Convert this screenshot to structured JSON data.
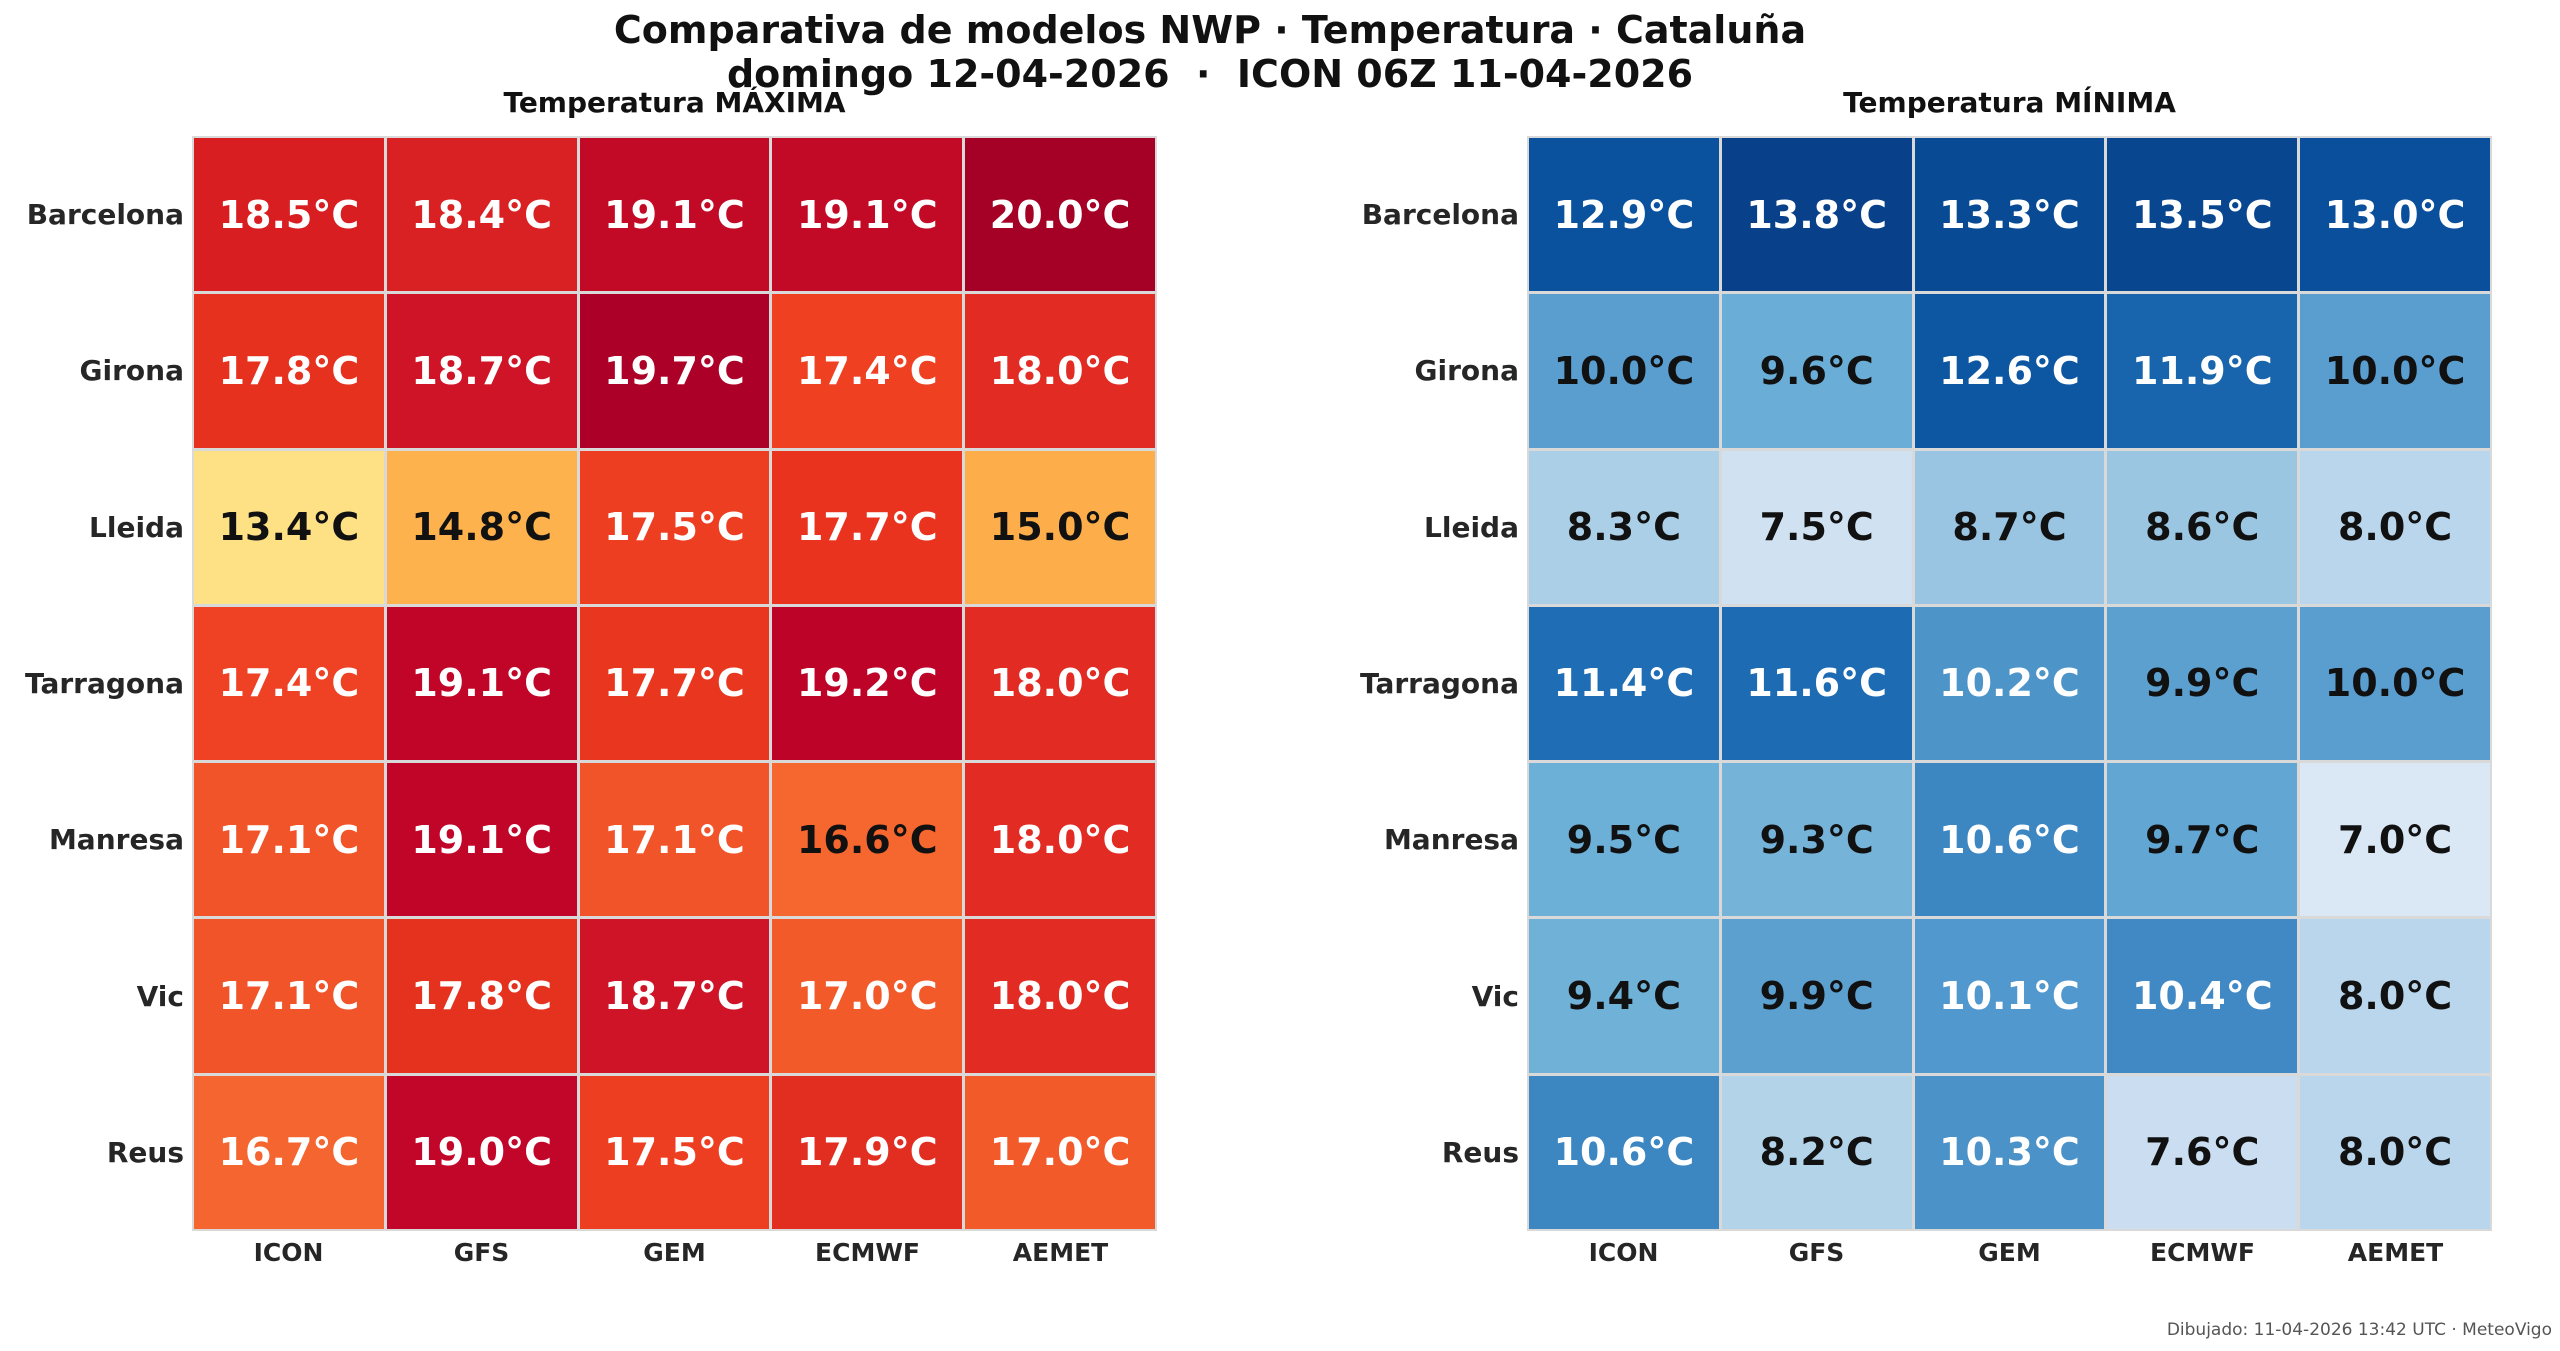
{
  "header": {
    "title_line1": "Comparativa de modelos NWP · Temperatura · Cataluña",
    "title_line2": "domingo 12-04-2026  ·  ICON 06Z 11-04-2026"
  },
  "footer": {
    "text": "Dibujado: 11-04-2026 13:42 UTC · MeteoVigo"
  },
  "rows": [
    "Barcelona",
    "Girona",
    "Lleida",
    "Tarragona",
    "Manresa",
    "Vic",
    "Reus"
  ],
  "columns": [
    "ICON",
    "GFS",
    "GEM",
    "ECMWF",
    "AEMET"
  ],
  "max_panel": {
    "title": "Temperatura MÁXIMA",
    "cells": [
      [
        {
          "t": "18.5°C",
          "bg": "#d81e21",
          "dark": false
        },
        {
          "t": "18.4°C",
          "bg": "#d92022",
          "dark": false
        },
        {
          "t": "19.1°C",
          "bg": "#c20a26",
          "dark": false
        },
        {
          "t": "19.1°C",
          "bg": "#c20a26",
          "dark": false
        },
        {
          "t": "20.0°C",
          "bg": "#a50026",
          "dark": false
        }
      ],
      [
        {
          "t": "17.8°C",
          "bg": "#e7311f",
          "dark": false
        },
        {
          "t": "18.7°C",
          "bg": "#cf1427",
          "dark": false
        },
        {
          "t": "19.7°C",
          "bg": "#ad0028",
          "dark": false
        },
        {
          "t": "17.4°C",
          "bg": "#ef4122",
          "dark": false
        },
        {
          "t": "18.0°C",
          "bg": "#e22b22",
          "dark": false
        }
      ],
      [
        {
          "t": "13.4°C",
          "bg": "#fee085",
          "dark": true
        },
        {
          "t": "14.8°C",
          "bg": "#fdb24e",
          "dark": true
        },
        {
          "t": "17.5°C",
          "bg": "#ee3e22",
          "dark": false
        },
        {
          "t": "17.7°C",
          "bg": "#e9331f",
          "dark": false
        },
        {
          "t": "15.0°C",
          "bg": "#fdae4b",
          "dark": true
        }
      ],
      [
        {
          "t": "17.4°C",
          "bg": "#ef4123",
          "dark": false
        },
        {
          "t": "19.1°C",
          "bg": "#c10529",
          "dark": false
        },
        {
          "t": "17.7°C",
          "bg": "#e9371f",
          "dark": false
        },
        {
          "t": "19.2°C",
          "bg": "#be0328",
          "dark": false
        },
        {
          "t": "18.0°C",
          "bg": "#e22b22",
          "dark": false
        }
      ],
      [
        {
          "t": "17.1°C",
          "bg": "#f2542a",
          "dark": false
        },
        {
          "t": "19.1°C",
          "bg": "#c10529",
          "dark": false
        },
        {
          "t": "17.1°C",
          "bg": "#f2542a",
          "dark": false
        },
        {
          "t": "16.6°C",
          "bg": "#f6672f",
          "dark": true
        },
        {
          "t": "18.0°C",
          "bg": "#e22b22",
          "dark": false
        }
      ],
      [
        {
          "t": "17.1°C",
          "bg": "#f2542a",
          "dark": false
        },
        {
          "t": "17.8°C",
          "bg": "#e5321f",
          "dark": false
        },
        {
          "t": "18.7°C",
          "bg": "#cf1427",
          "dark": false
        },
        {
          "t": "17.0°C",
          "bg": "#f25a2a",
          "dark": false
        },
        {
          "t": "18.0°C",
          "bg": "#e22b22",
          "dark": false
        }
      ],
      [
        {
          "t": "16.7°C",
          "bg": "#f5652f",
          "dark": false
        },
        {
          "t": "19.0°C",
          "bg": "#c20629",
          "dark": false
        },
        {
          "t": "17.5°C",
          "bg": "#ee3e22",
          "dark": false
        },
        {
          "t": "17.9°C",
          "bg": "#e22e21",
          "dark": false
        },
        {
          "t": "17.0°C",
          "bg": "#f25a2a",
          "dark": false
        }
      ]
    ]
  },
  "min_panel": {
    "title": "Temperatura MÍNIMA",
    "cells": [
      [
        {
          "t": "12.9°C",
          "bg": "#0a519e",
          "dark": false
        },
        {
          "t": "13.8°C",
          "bg": "#08408a",
          "dark": false
        },
        {
          "t": "13.3°C",
          "bg": "#084a94",
          "dark": false
        },
        {
          "t": "13.5°C",
          "bg": "#084690",
          "dark": false
        },
        {
          "t": "13.0°C",
          "bg": "#0a4f9c",
          "dark": false
        }
      ],
      [
        {
          "t": "10.0°C",
          "bg": "#5a9ecf",
          "dark": true
        },
        {
          "t": "9.6°C",
          "bg": "#6aaed7",
          "dark": true
        },
        {
          "t": "12.6°C",
          "bg": "#0d56a2",
          "dark": false
        },
        {
          "t": "11.9°C",
          "bg": "#1865ad",
          "dark": false
        },
        {
          "t": "10.0°C",
          "bg": "#5a9ecf",
          "dark": true
        }
      ],
      [
        {
          "t": "8.3°C",
          "bg": "#abcfe7",
          "dark": true
        },
        {
          "t": "7.5°C",
          "bg": "#d0e1f2",
          "dark": true
        },
        {
          "t": "8.7°C",
          "bg": "#99c5e2",
          "dark": true
        },
        {
          "t": "8.6°C",
          "bg": "#9bc6e2",
          "dark": true
        },
        {
          "t": "8.0°C",
          "bg": "#bad6ec",
          "dark": true
        }
      ],
      [
        {
          "t": "11.4°C",
          "bg": "#1f6db4",
          "dark": false
        },
        {
          "t": "11.6°C",
          "bg": "#1d6cb3",
          "dark": false
        },
        {
          "t": "10.2°C",
          "bg": "#4d94c9",
          "dark": false
        },
        {
          "t": "9.9°C",
          "bg": "#5ca0d0",
          "dark": true
        },
        {
          "t": "10.0°C",
          "bg": "#5a9ecf",
          "dark": true
        }
      ],
      [
        {
          "t": "9.5°C",
          "bg": "#6cafd7",
          "dark": true
        },
        {
          "t": "9.3°C",
          "bg": "#76b3d9",
          "dark": true
        },
        {
          "t": "10.6°C",
          "bg": "#3c86c2",
          "dark": false
        },
        {
          "t": "9.7°C",
          "bg": "#62a6d3",
          "dark": true
        },
        {
          "t": "7.0°C",
          "bg": "#dae8f5",
          "dark": true
        }
      ],
      [
        {
          "t": "9.4°C",
          "bg": "#70b1d8",
          "dark": true
        },
        {
          "t": "9.9°C",
          "bg": "#5ca0d0",
          "dark": true
        },
        {
          "t": "10.1°C",
          "bg": "#5098cd",
          "dark": false
        },
        {
          "t": "10.4°C",
          "bg": "#4189c4",
          "dark": false
        },
        {
          "t": "8.0°C",
          "bg": "#bad6ec",
          "dark": true
        }
      ],
      [
        {
          "t": "10.6°C",
          "bg": "#3c86c2",
          "dark": false
        },
        {
          "t": "8.2°C",
          "bg": "#b3d3e9",
          "dark": true
        },
        {
          "t": "10.3°C",
          "bg": "#4a92c8",
          "dark": false
        },
        {
          "t": "7.6°C",
          "bg": "#cbdef1",
          "dark": true
        },
        {
          "t": "8.0°C",
          "bg": "#bad6ec",
          "dark": true
        }
      ]
    ]
  },
  "chart_data": [
    {
      "type": "heatmap",
      "title": "Temperatura MÁXIMA",
      "suptitle": "Comparativa de modelos NWP · Temperatura · Cataluña — domingo 12-04-2026 · ICON 06Z 11-04-2026",
      "xlabel": "",
      "ylabel": "",
      "x": [
        "ICON",
        "GFS",
        "GEM",
        "ECMWF",
        "AEMET"
      ],
      "y": [
        "Barcelona",
        "Girona",
        "Lleida",
        "Tarragona",
        "Manresa",
        "Vic",
        "Reus"
      ],
      "unit": "°C",
      "colormap": "YlOrRd",
      "values": [
        [
          18.5,
          18.4,
          19.1,
          19.1,
          20.0
        ],
        [
          17.8,
          18.7,
          19.7,
          17.4,
          18.0
        ],
        [
          13.4,
          14.8,
          17.5,
          17.7,
          15.0
        ],
        [
          17.4,
          19.1,
          17.7,
          19.2,
          18.0
        ],
        [
          17.1,
          19.1,
          17.1,
          16.6,
          18.0
        ],
        [
          17.1,
          17.8,
          18.7,
          17.0,
          18.0
        ],
        [
          16.7,
          19.0,
          17.5,
          17.9,
          17.0
        ]
      ]
    },
    {
      "type": "heatmap",
      "title": "Temperatura MÍNIMA",
      "xlabel": "",
      "ylabel": "",
      "x": [
        "ICON",
        "GFS",
        "GEM",
        "ECMWF",
        "AEMET"
      ],
      "y": [
        "Barcelona",
        "Girona",
        "Lleida",
        "Tarragona",
        "Manresa",
        "Vic",
        "Reus"
      ],
      "unit": "°C",
      "colormap": "Blues",
      "values": [
        [
          12.9,
          13.8,
          13.3,
          13.5,
          13.0
        ],
        [
          10.0,
          9.6,
          12.6,
          11.9,
          10.0
        ],
        [
          8.3,
          7.5,
          8.7,
          8.6,
          8.0
        ],
        [
          11.4,
          11.6,
          10.2,
          9.9,
          10.0
        ],
        [
          9.5,
          9.3,
          10.6,
          9.7,
          7.0
        ],
        [
          9.4,
          9.9,
          10.1,
          10.4,
          8.0
        ],
        [
          10.6,
          8.2,
          10.3,
          7.6,
          8.0
        ]
      ]
    }
  ]
}
